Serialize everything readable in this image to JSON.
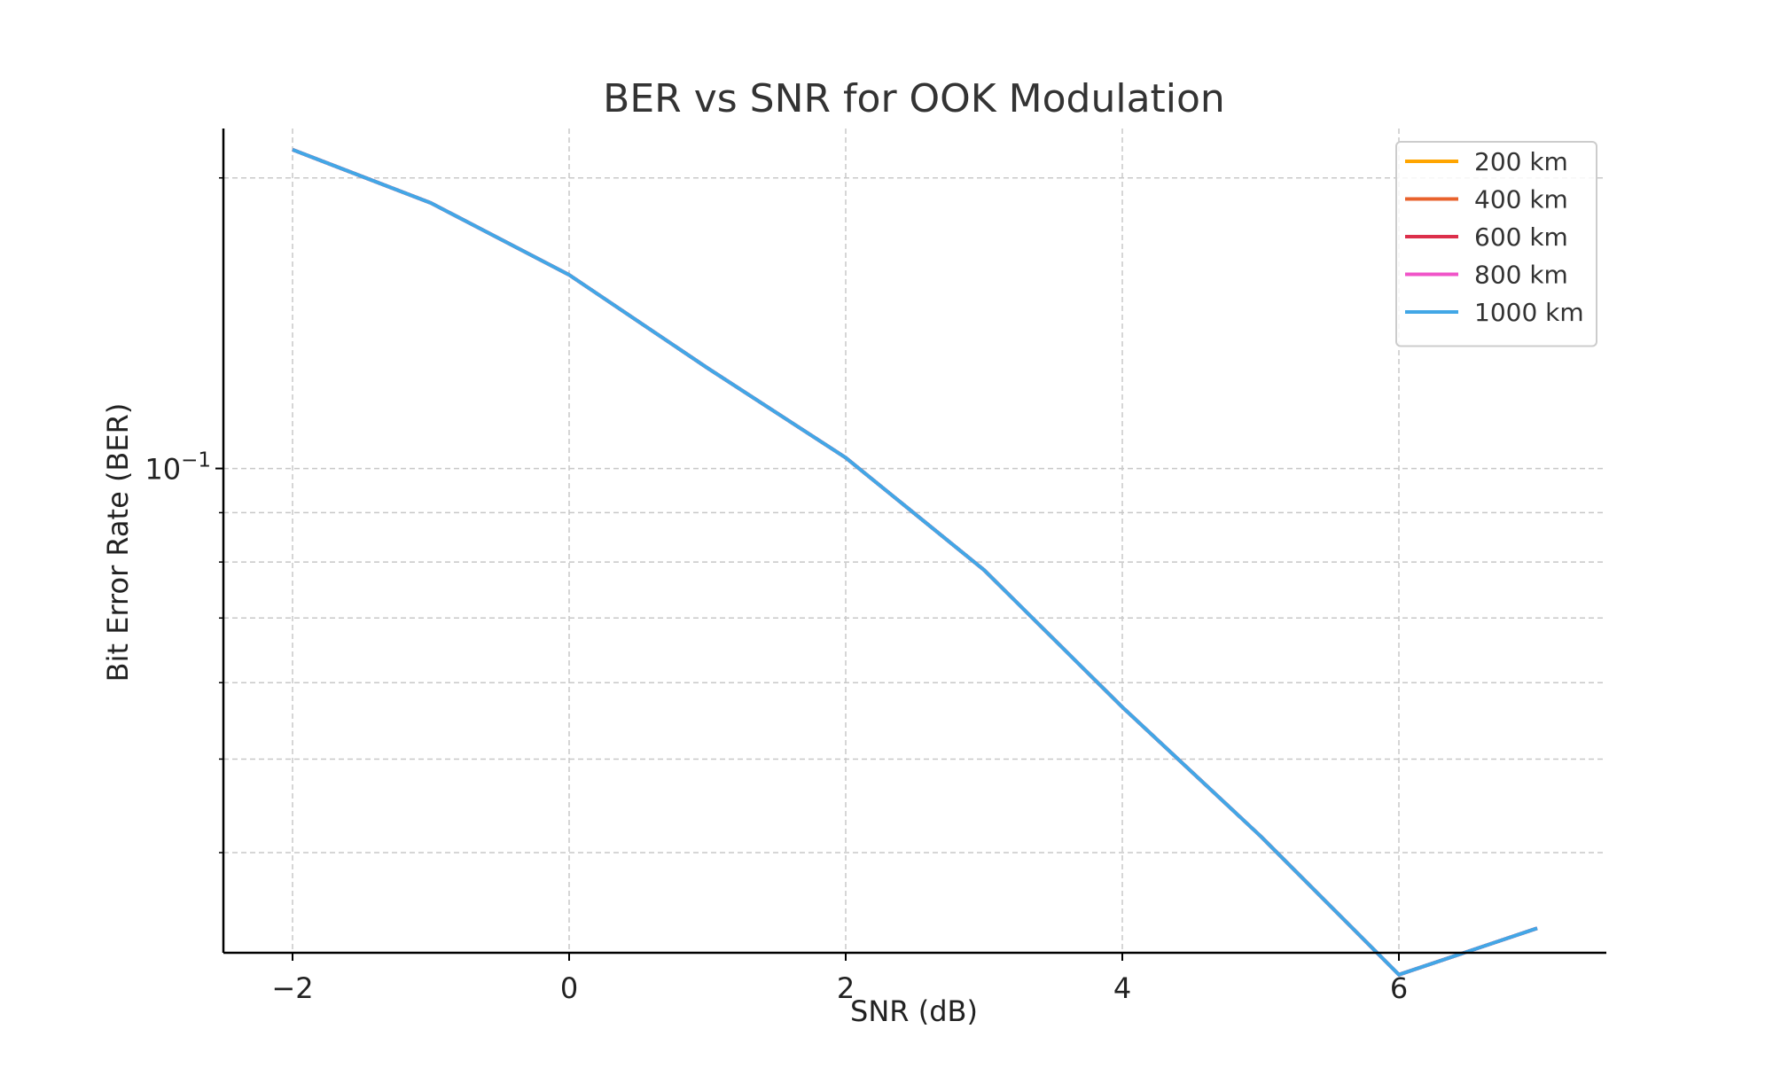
{
  "chart_data": {
    "type": "line",
    "title": "BER vs SNR for OOK Modulation",
    "xlabel": "SNR (dB)",
    "ylabel": "Bit Error Rate (BER)",
    "x_scale": "linear",
    "y_scale": "log",
    "xlim": [
      -2.5,
      7.5
    ],
    "ylim": [
      0.0315,
      0.225
    ],
    "x_ticks": [
      -2,
      0,
      2,
      4,
      6
    ],
    "x_tick_labels": [
      "−2",
      "0",
      "2",
      "4",
      "6"
    ],
    "y_major_ticks": [
      0.1
    ],
    "y_major_tick_base": "10",
    "y_major_tick_exponent": "−1",
    "y_minor_ticks": [
      0.04,
      0.05,
      0.06,
      0.07,
      0.08,
      0.09,
      0.2
    ],
    "grid": true,
    "legend_position": "top-right",
    "x": [
      -2,
      -1,
      0,
      1,
      2,
      3,
      4,
      5,
      6,
      7
    ],
    "series": [
      {
        "name": "200 km",
        "color": "#ffa500",
        "values": [
          0.2139,
          0.1884,
          0.1587,
          0.1271,
          0.1026,
          0.0785,
          0.0566,
          0.0416,
          0.0299,
          0.0334
        ]
      },
      {
        "name": "400 km",
        "color": "#e8622c",
        "values": [
          0.2139,
          0.1884,
          0.1587,
          0.1271,
          0.1026,
          0.0785,
          0.0566,
          0.0416,
          0.0299,
          0.0334
        ]
      },
      {
        "name": "600 km",
        "color": "#dc2f4b",
        "values": [
          0.2139,
          0.1884,
          0.1587,
          0.1271,
          0.1026,
          0.0785,
          0.0566,
          0.0416,
          0.0299,
          0.0334
        ]
      },
      {
        "name": "800 km",
        "color": "#f054c8",
        "values": [
          0.2139,
          0.1884,
          0.1587,
          0.1271,
          0.1026,
          0.0785,
          0.0566,
          0.0416,
          0.0299,
          0.0334
        ]
      },
      {
        "name": "1000 km",
        "color": "#42a7e6",
        "values": [
          0.2139,
          0.1884,
          0.1587,
          0.1271,
          0.1026,
          0.0785,
          0.0566,
          0.0416,
          0.0299,
          0.0334
        ]
      }
    ]
  }
}
